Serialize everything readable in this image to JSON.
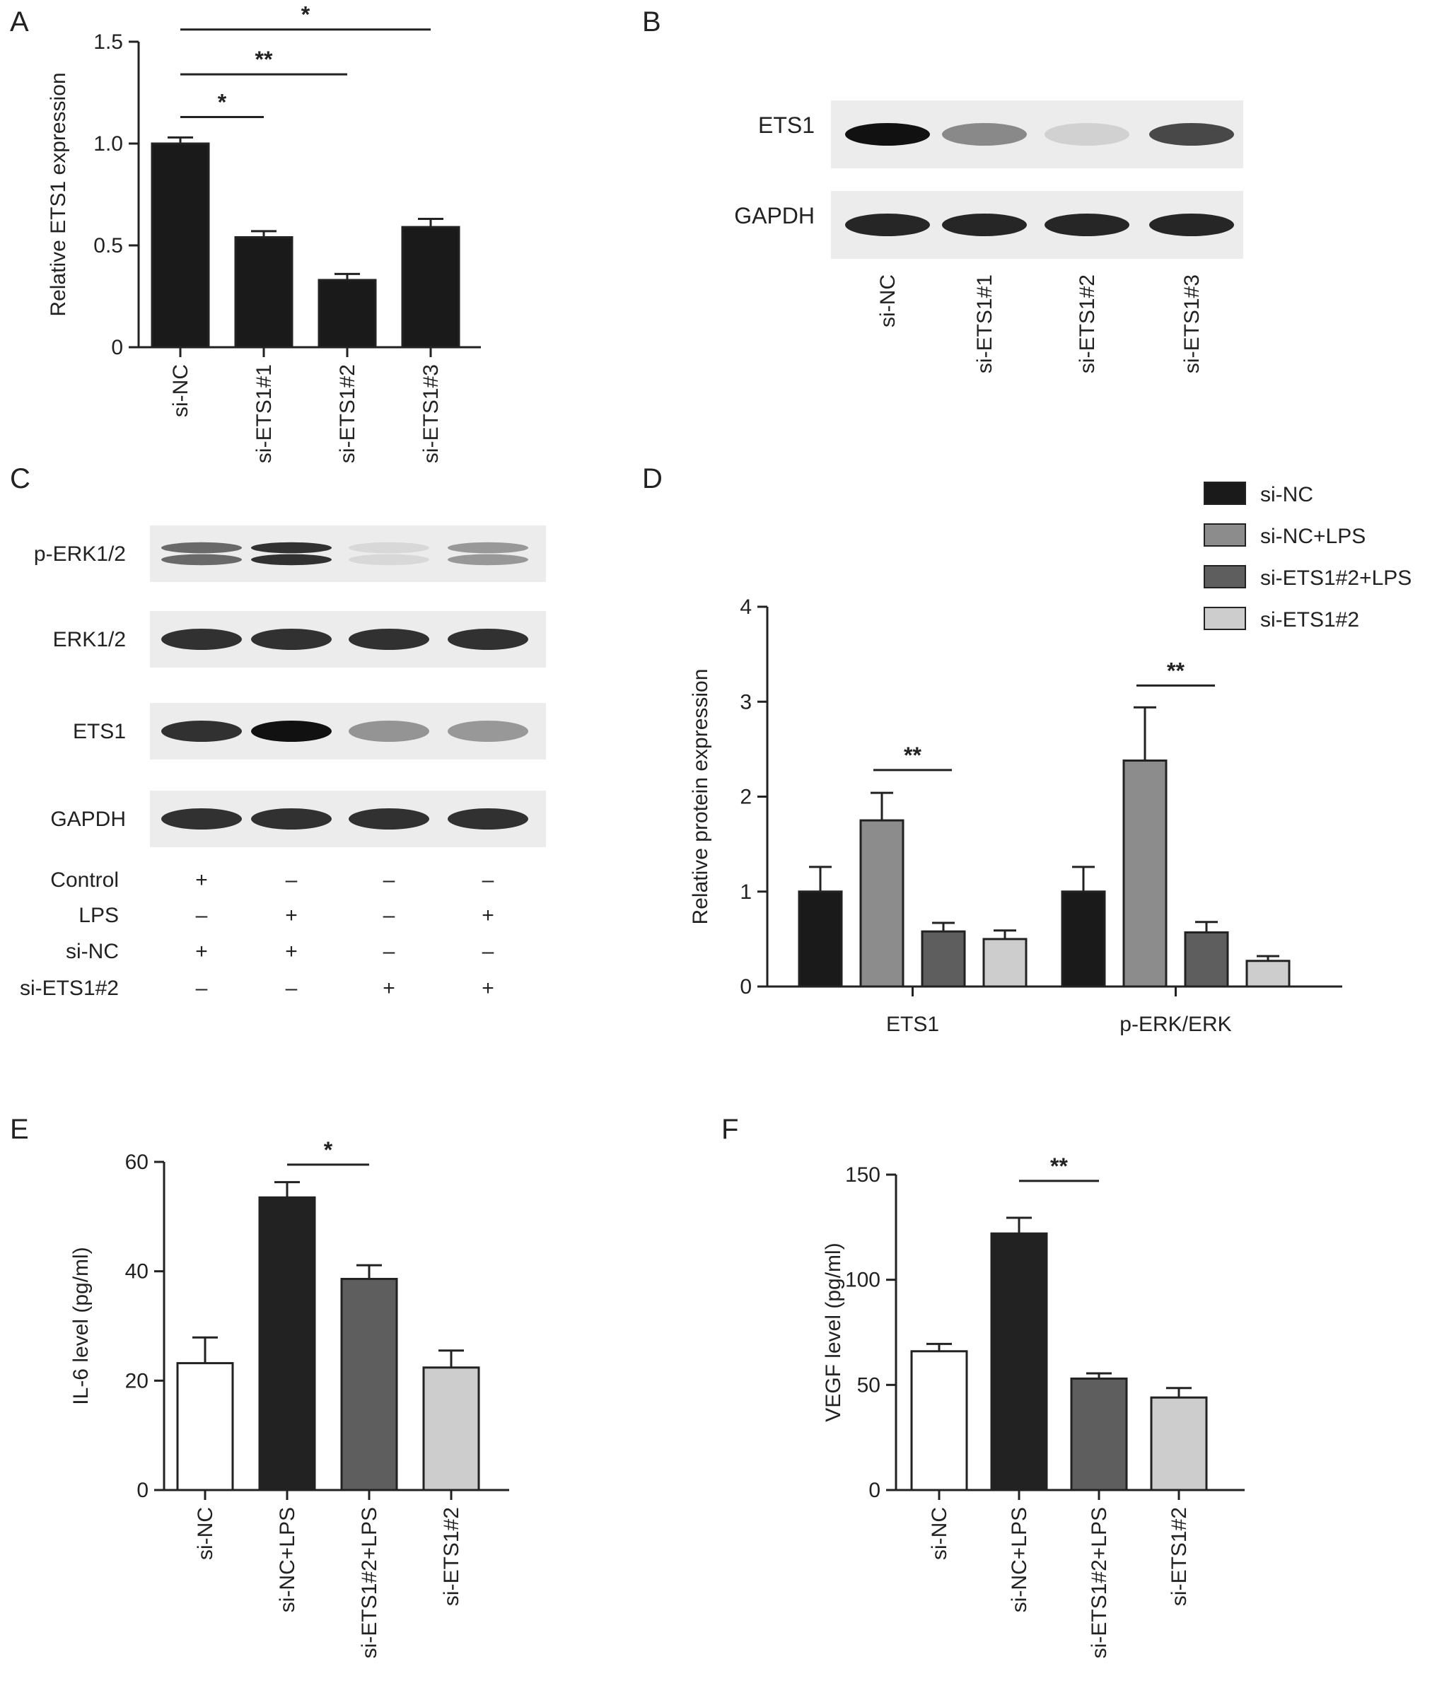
{
  "panel_labels": [
    "A",
    "B",
    "C",
    "D",
    "E",
    "F"
  ],
  "colors": {
    "black": "#1a1a1a",
    "bar_white": "#ffffff",
    "dark": "#222222",
    "mid_gray": "#8c8c8c",
    "dark_gray": "#5e5e5e",
    "light_gray": "#cdcdcd",
    "blot_bg": "#ececec"
  },
  "panel_b": {
    "rows": [
      "ETS1",
      "GAPDH"
    ],
    "lanes": [
      "si-NC",
      "si-ETS1#1",
      "si-ETS1#2",
      "si-ETS1#3"
    ],
    "band_intensity": {
      "ETS1": [
        1.0,
        0.45,
        0.12,
        0.75
      ],
      "GAPDH": [
        0.9,
        0.9,
        0.9,
        0.9
      ]
    }
  },
  "panel_c": {
    "rows": [
      "p-ERK1/2",
      "ERK1/2",
      "ETS1",
      "GAPDH"
    ],
    "band_intensity": {
      "p-ERK1/2": [
        0.7,
        1.0,
        0.1,
        0.45
      ],
      "ERK1/2": [
        0.85,
        0.85,
        0.85,
        0.85
      ],
      "ETS1": [
        0.85,
        1.0,
        0.4,
        0.38
      ],
      "GAPDH": [
        0.85,
        0.85,
        0.85,
        0.85
      ]
    },
    "conditions": [
      {
        "label": "Control",
        "marks": [
          "+",
          "–",
          "–",
          "–"
        ]
      },
      {
        "label": "LPS",
        "marks": [
          "–",
          "+",
          "–",
          "+"
        ]
      },
      {
        "label": "si-NC",
        "marks": [
          "+",
          "+",
          "–",
          "–"
        ]
      },
      {
        "label": "si-ETS1#2",
        "marks": [
          "–",
          "–",
          "+",
          "+"
        ]
      }
    ]
  },
  "chart_data": [
    {
      "panel": "A",
      "type": "bar",
      "categories": [
        "si-NC",
        "si-ETS1#1",
        "si-ETS1#2",
        "si-ETS1#3"
      ],
      "values": [
        1.0,
        0.54,
        0.33,
        0.59
      ],
      "errors": [
        0.03,
        0.03,
        0.03,
        0.04
      ],
      "colors": [
        "#1a1a1a",
        "#1a1a1a",
        "#1a1a1a",
        "#1a1a1a"
      ],
      "ylabel": "Relative ETS1 expression",
      "ylim": [
        0,
        1.5
      ],
      "yticks": [
        "0",
        "0.5",
        "1.0",
        "1.5"
      ],
      "ytick_values": [
        0,
        0.5,
        1.0,
        1.5
      ],
      "significance": [
        {
          "from": 0,
          "to": 1,
          "label": "*",
          "level": 1.13
        },
        {
          "from": 0,
          "to": 2,
          "label": "**",
          "level": 1.34
        },
        {
          "from": 0,
          "to": 3,
          "label": "*",
          "level": 1.56
        }
      ]
    },
    {
      "panel": "D",
      "type": "bar",
      "groups": [
        "ETS1",
        "p-ERK/ERK"
      ],
      "series": [
        {
          "name": "si-NC",
          "values": [
            1.0,
            1.0
          ],
          "errors": [
            0.26,
            0.26
          ],
          "color": "#1a1a1a"
        },
        {
          "name": "si-NC+LPS",
          "values": [
            1.75,
            2.38
          ],
          "errors": [
            0.29,
            0.56
          ],
          "color": "#8c8c8c"
        },
        {
          "name": "si-ETS1#2+LPS",
          "values": [
            0.58,
            0.57
          ],
          "errors": [
            0.09,
            0.11
          ],
          "color": "#5e5e5e"
        },
        {
          "name": "si-ETS1#2",
          "values": [
            0.5,
            0.27
          ],
          "errors": [
            0.09,
            0.05
          ],
          "color": "#cdcdcd"
        }
      ],
      "ylabel": "Relative protein expression",
      "ylim": [
        0,
        4
      ],
      "yticks": [
        "0",
        "1",
        "2",
        "3",
        "4"
      ],
      "ytick_values": [
        0,
        1,
        2,
        3,
        4
      ],
      "legend": "top-right",
      "significance": [
        {
          "group": 0,
          "from": 1,
          "to": 2,
          "label": "**",
          "level": 2.28
        },
        {
          "group": 1,
          "from": 1,
          "to": 2,
          "label": "**",
          "level": 3.17
        }
      ]
    },
    {
      "panel": "E",
      "type": "bar",
      "categories": [
        "si-NC",
        "si-NC+LPS",
        "si-ETS1#2+LPS",
        "si-ETS1#2"
      ],
      "values": [
        23.2,
        53.5,
        38.6,
        22.4
      ],
      "errors": [
        4.7,
        2.8,
        2.5,
        3.1
      ],
      "colors": [
        "#ffffff",
        "#222222",
        "#5e5e5e",
        "#cdcdcd"
      ],
      "ylabel": "IL-6 level (pg/ml)",
      "ylim": [
        0,
        60
      ],
      "yticks": [
        "0",
        "20",
        "40",
        "60"
      ],
      "ytick_values": [
        0,
        20,
        40,
        60
      ],
      "significance": [
        {
          "from": 1,
          "to": 2,
          "label": "*",
          "level": 59.5
        }
      ]
    },
    {
      "panel": "F",
      "type": "bar",
      "categories": [
        "si-NC",
        "si-NC+LPS",
        "si-ETS1#2+LPS",
        "si-ETS1#2"
      ],
      "values": [
        66,
        122,
        53,
        44
      ],
      "errors": [
        3.5,
        7.5,
        2.5,
        4.5
      ],
      "colors": [
        "#ffffff",
        "#222222",
        "#5e5e5e",
        "#cdcdcd"
      ],
      "ylabel": "VEGF level (pg/ml)",
      "ylim": [
        0,
        150
      ],
      "yticks": [
        "0",
        "50",
        "100",
        "150"
      ],
      "ytick_values": [
        0,
        50,
        100,
        150
      ],
      "significance": [
        {
          "from": 1,
          "to": 2,
          "label": "**",
          "level": 147
        }
      ]
    }
  ]
}
